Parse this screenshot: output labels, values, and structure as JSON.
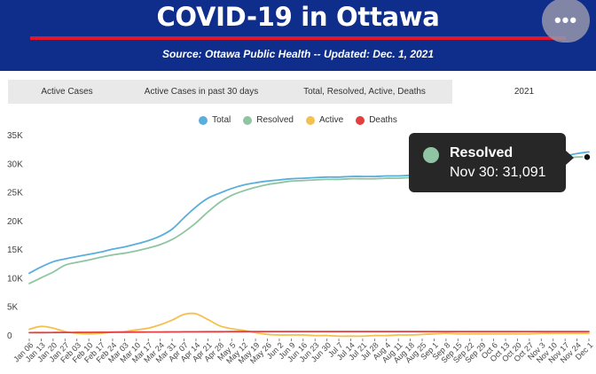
{
  "header": {
    "title": "COVID-19 in Ottawa",
    "subtitle": "Source:  Ottawa Public Health -- Updated:  Dec. 1, 2021",
    "more_label": "•••"
  },
  "tabs": [
    {
      "label": "Active Cases",
      "active": false
    },
    {
      "label": "Active Cases in past 30 days",
      "active": false
    },
    {
      "label": "Total, Resolved, Active, Deaths",
      "active": false
    },
    {
      "label": "2021",
      "active": true
    }
  ],
  "tooltip": {
    "series": "Resolved",
    "text": "Nov 30: 31,091",
    "color": "#8fc5a2"
  },
  "chart_data": {
    "type": "line",
    "title": "",
    "xlabel": "",
    "ylabel": "",
    "ylim": [
      0,
      35000
    ],
    "yticks": [
      "0",
      "5K",
      "10K",
      "15K",
      "20K",
      "25K",
      "30K",
      "35K"
    ],
    "grid": false,
    "legend_position": "top-center",
    "categories": [
      "Jan 06",
      "Jan 13",
      "Jan 20",
      "Jan 27",
      "Feb 03",
      "Feb 10",
      "Feb 17",
      "Feb 24",
      "Mar 03",
      "Mar 10",
      "Mar 17",
      "Mar 24",
      "Mar 31",
      "Apr 07",
      "Apr 14",
      "Apr 21",
      "Apr 28",
      "May 05",
      "May 12",
      "May 19",
      "May 26",
      "Jun 02",
      "Jun 09",
      "Jun 16",
      "Jun 23",
      "Jun 30",
      "Jul 07",
      "Jul 14",
      "Jul 21",
      "Jul 28",
      "Aug 04",
      "Aug 11",
      "Aug 18",
      "Aug 25",
      "Sep 01",
      "Sep 08",
      "Sep 15",
      "Sep 22",
      "Sep 29",
      "Oct 06",
      "Oct 13",
      "Oct 20",
      "Oct 27",
      "Nov 03",
      "Nov 10",
      "Nov 17",
      "Nov 24",
      "Dec 1"
    ],
    "xticks": [
      "Jan 06",
      "Jan 13",
      "Jan 20",
      "Jan 27",
      "Feb 03",
      "Feb 10",
      "Feb 17",
      "Feb 24",
      "Mar 03",
      "Mar 10",
      "Mar 17",
      "Mar 24",
      "Mar 31",
      "Apr 07",
      "Apr 14",
      "Apr 21",
      "Apr 28",
      "May 5",
      "May 12",
      "May 19",
      "May 26",
      "Jun 2",
      "Jun 9",
      "Jun 16",
      "Jun 23",
      "Jun 30",
      "Jul 7",
      "Jul 14",
      "Jul 21",
      "Jul 28",
      "Aug 4",
      "Aug 11",
      "Aug 18",
      "Aug 25",
      "Sep 1",
      "Sep 8",
      "Sep 15",
      "Sep 22",
      "Sep 29",
      "Oct 6",
      "Oct 13",
      "Oct 20",
      "Oct 27",
      "Nov 3",
      "Nov 10",
      "Nov 17",
      "Nov 24",
      "Dec 1"
    ],
    "series": [
      {
        "name": "Total",
        "color": "#5aaedd",
        "values": [
          10800,
          11900,
          12800,
          13300,
          13700,
          14100,
          14500,
          15000,
          15400,
          15900,
          16500,
          17300,
          18500,
          20500,
          22400,
          23900,
          24800,
          25600,
          26200,
          26600,
          26900,
          27100,
          27300,
          27400,
          27500,
          27600,
          27600,
          27700,
          27700,
          27700,
          27800,
          27800,
          27900,
          28000,
          28200,
          28400,
          28600,
          28800,
          29000,
          29300,
          29600,
          29900,
          30200,
          30600,
          31000,
          31300,
          31700,
          32000
        ]
      },
      {
        "name": "Resolved",
        "color": "#8fc5a2",
        "values": [
          9000,
          10000,
          11000,
          12200,
          12700,
          13100,
          13600,
          14000,
          14300,
          14700,
          15200,
          15800,
          16700,
          18000,
          19600,
          21500,
          23200,
          24400,
          25200,
          25800,
          26300,
          26600,
          26900,
          27000,
          27100,
          27200,
          27200,
          27300,
          27300,
          27300,
          27400,
          27400,
          27500,
          27500,
          27700,
          27900,
          28100,
          28300,
          28600,
          28900,
          29200,
          29500,
          29800,
          30200,
          30500,
          30800,
          31091,
          31091
        ]
      },
      {
        "name": "Active",
        "color": "#f4c04f",
        "values": [
          1000,
          1500,
          1200,
          600,
          300,
          200,
          300,
          500,
          600,
          900,
          1200,
          1800,
          2600,
          3600,
          3700,
          2700,
          1600,
          1100,
          800,
          400,
          100,
          0,
          0,
          0,
          -100,
          -100,
          -200,
          -200,
          -200,
          -100,
          -100,
          0,
          0,
          100,
          200,
          300,
          200,
          200,
          200,
          200,
          200,
          200,
          200,
          300,
          300,
          300,
          300,
          300
        ]
      },
      {
        "name": "Deaths",
        "color": "#e04040",
        "values": [
          400,
          420,
          440,
          450,
          460,
          470,
          480,
          490,
          500,
          510,
          520,
          530,
          540,
          550,
          560,
          570,
          580,
          590,
          595,
          600,
          600,
          600,
          600,
          600,
          600,
          600,
          600,
          600,
          600,
          600,
          600,
          600,
          600,
          600,
          600,
          600,
          600,
          600,
          600,
          600,
          600,
          600,
          600,
          600,
          600,
          600,
          600,
          600
        ]
      }
    ]
  }
}
